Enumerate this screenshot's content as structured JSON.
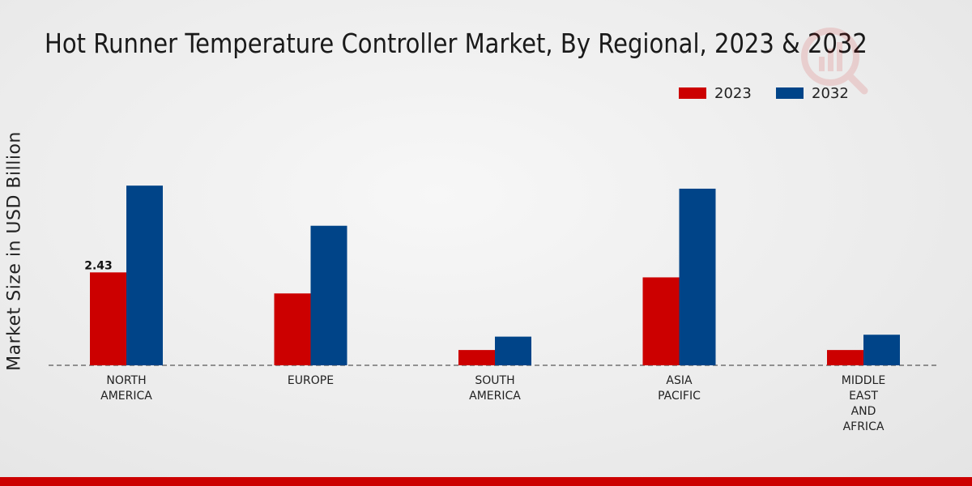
{
  "chart_data": {
    "type": "bar",
    "title": "Hot Runner Temperature Controller Market, By Regional, 2023 & 2032",
    "xlabel": "",
    "ylabel": "Market Size in USD Billion",
    "ylim": [
      0,
      5
    ],
    "categories": [
      [
        "NORTH",
        "AMERICA"
      ],
      [
        "EUROPE"
      ],
      [
        "SOUTH",
        "AMERICA"
      ],
      [
        "ASIA",
        "PACIFIC"
      ],
      [
        "MIDDLE",
        "EAST",
        "AND",
        "AFRICA"
      ]
    ],
    "series": [
      {
        "name": "2023",
        "color": "#cc0000",
        "values": [
          2.43,
          1.88,
          0.4,
          2.3,
          0.4
        ]
      },
      {
        "name": "2032",
        "color": "#004488",
        "values": [
          4.7,
          3.65,
          0.75,
          4.62,
          0.8
        ]
      }
    ],
    "data_labels": [
      {
        "series": 0,
        "index": 0,
        "text": "2.43"
      }
    ],
    "legend_position": "top-right",
    "baseline": "dashed"
  }
}
